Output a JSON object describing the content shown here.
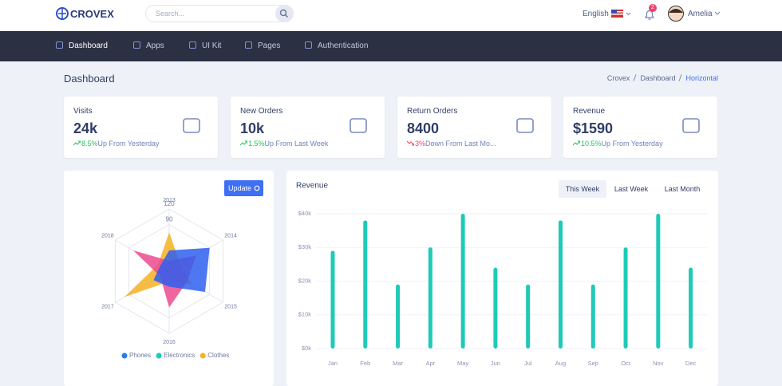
{
  "header": {
    "logo": "CROVEX",
    "search_placeholder": "Search...",
    "language": "English",
    "notification_count": 2,
    "user": "Amelia"
  },
  "nav": [
    "Dashboard",
    "Apps",
    "UI Kit",
    "Pages",
    "Authentication"
  ],
  "page": {
    "title": "Dashboard",
    "breadcrumb": [
      "Crovex",
      "Dashboard",
      "Horizontal"
    ]
  },
  "stats": [
    {
      "label": "Visits",
      "value": "24k",
      "change": "8.5%",
      "note": "Up From Yesterday",
      "trend": "up"
    },
    {
      "label": "New Orders",
      "value": "10k",
      "change": "1.5%",
      "note": "Up From Last Week",
      "trend": "up"
    },
    {
      "label": "Return Orders",
      "value": "8400",
      "change": "3%",
      "note": "Down From Last Mo...",
      "trend": "down"
    },
    {
      "label": "Revenue",
      "value": "$1590",
      "change": "10.5%",
      "note": "Up From Yesterday",
      "trend": "up"
    }
  ],
  "chart_data": [
    {
      "type": "radar",
      "button": "Update",
      "categories": [
        "2013",
        "2014",
        "2015",
        "2016",
        "2017",
        "2018"
      ],
      "series": [
        {
          "name": "Phones",
          "color": "#2c7be5",
          "fill": "#2f5ff0",
          "values": [
            40,
            90,
            80,
            30,
            35,
            20
          ]
        },
        {
          "name": "Electronics",
          "color": "#1ecab8",
          "fill": "#ec4a8e",
          "values": [
            20,
            60,
            40,
            70,
            20,
            80
          ]
        },
        {
          "name": "Clothes",
          "color": "#f5b225",
          "fill": "#f5b225",
          "values": [
            75,
            25,
            50,
            20,
            100,
            25
          ]
        }
      ],
      "ylim": [
        0,
        120
      ],
      "yticks": [
        90,
        120
      ],
      "legend": "bottom"
    },
    {
      "type": "bar",
      "title": "Revenue",
      "tabs": [
        "This Week",
        "Last Week",
        "Last Month"
      ],
      "categories": [
        "Jan",
        "Feb",
        "Mar",
        "Apr",
        "May",
        "Jun",
        "Jul",
        "Aug",
        "Sep",
        "Oct",
        "Nov",
        "Dec"
      ],
      "values": [
        29000,
        38000,
        19000,
        30000,
        40000,
        24000,
        19000,
        38000,
        19000,
        30000,
        40000,
        24000
      ],
      "color": "#1ecab8",
      "ylim": [
        0,
        40000
      ],
      "yticks": [
        {
          "value": 0,
          "label": "$0k"
        },
        {
          "value": 10000,
          "label": "$10k"
        },
        {
          "value": 20000,
          "label": "$20k"
        },
        {
          "value": 30000,
          "label": "$30k"
        },
        {
          "value": 40000,
          "label": "$40k"
        }
      ],
      "grid": true
    }
  ]
}
